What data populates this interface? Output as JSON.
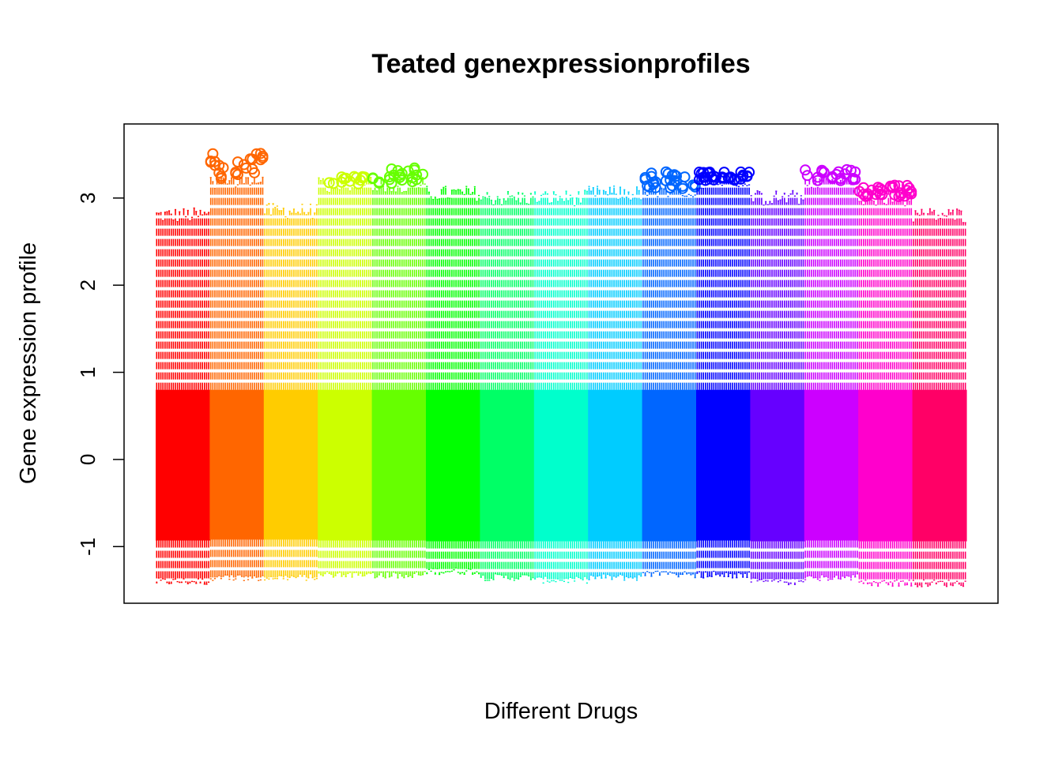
{
  "chart_data": {
    "type": "boxplot",
    "title": "Teated genexpressionprofiles",
    "xlabel": "Different Drugs",
    "ylabel": "Gene expression profile",
    "ylim": [
      -1.65,
      3.85
    ],
    "yticks": [
      -1,
      0,
      1,
      2,
      3
    ],
    "ytick_labels": [
      "-1",
      "0",
      "1",
      "2",
      "3"
    ],
    "x_tick_labels_shown": false,
    "grid": false,
    "legend": "none",
    "series": [
      {
        "color": "#FF0000",
        "box_q1": -0.93,
        "box_q3": 0.8,
        "whisker_low": -1.4,
        "whisker_high": 2.8,
        "outliers_max": null
      },
      {
        "color": "#FF6600",
        "box_q1": -0.92,
        "box_q3": 0.8,
        "whisker_low": -1.35,
        "whisker_high": 3.2,
        "outliers_max": 3.55
      },
      {
        "color": "#FFCC00",
        "box_q1": -0.92,
        "box_q3": 0.8,
        "whisker_low": -1.35,
        "whisker_high": 2.85,
        "outliers_max": null
      },
      {
        "color": "#CCFF00",
        "box_q1": -0.93,
        "box_q3": 0.8,
        "whisker_low": -1.32,
        "whisker_high": 3.15,
        "outliers_max": 3.25
      },
      {
        "color": "#66FF00",
        "box_q1": -0.93,
        "box_q3": 0.8,
        "whisker_low": -1.32,
        "whisker_high": 3.15,
        "outliers_max": 3.35
      },
      {
        "color": "#00FF00",
        "box_q1": -0.94,
        "box_q3": 0.8,
        "whisker_low": -1.28,
        "whisker_high": 3.05,
        "outliers_max": null
      },
      {
        "color": "#00FF66",
        "box_q1": -0.94,
        "box_q3": 0.8,
        "whisker_low": -1.35,
        "whisker_high": 3.0,
        "outliers_max": null
      },
      {
        "color": "#00FFCC",
        "box_q1": -0.94,
        "box_q3": 0.8,
        "whisker_low": -1.38,
        "whisker_high": 3.0,
        "outliers_max": null
      },
      {
        "color": "#00CCFF",
        "box_q1": -0.94,
        "box_q3": 0.8,
        "whisker_low": -1.35,
        "whisker_high": 3.05,
        "outliers_max": null
      },
      {
        "color": "#0066FF",
        "box_q1": -0.94,
        "box_q3": 0.8,
        "whisker_low": -1.32,
        "whisker_high": 3.1,
        "outliers_max": 3.3
      },
      {
        "color": "#0000FF",
        "box_q1": -0.93,
        "box_q3": 0.8,
        "whisker_low": -1.32,
        "whisker_high": 3.2,
        "outliers_max": 3.3
      },
      {
        "color": "#6600FF",
        "box_q1": -0.94,
        "box_q3": 0.8,
        "whisker_low": -1.4,
        "whisker_high": 3.0,
        "outliers_max": null
      },
      {
        "color": "#CC00FF",
        "box_q1": -0.93,
        "box_q3": 0.8,
        "whisker_low": -1.35,
        "whisker_high": 3.2,
        "outliers_max": 3.35
      },
      {
        "color": "#FF00CC",
        "box_q1": -0.94,
        "box_q3": 0.8,
        "whisker_low": -1.42,
        "whisker_high": 3.0,
        "outliers_max": 3.15
      },
      {
        "color": "#FF0066",
        "box_q1": -0.94,
        "box_q3": 0.8,
        "whisker_low": -1.42,
        "whisker_high": 2.8,
        "outliers_max": null
      }
    ]
  }
}
